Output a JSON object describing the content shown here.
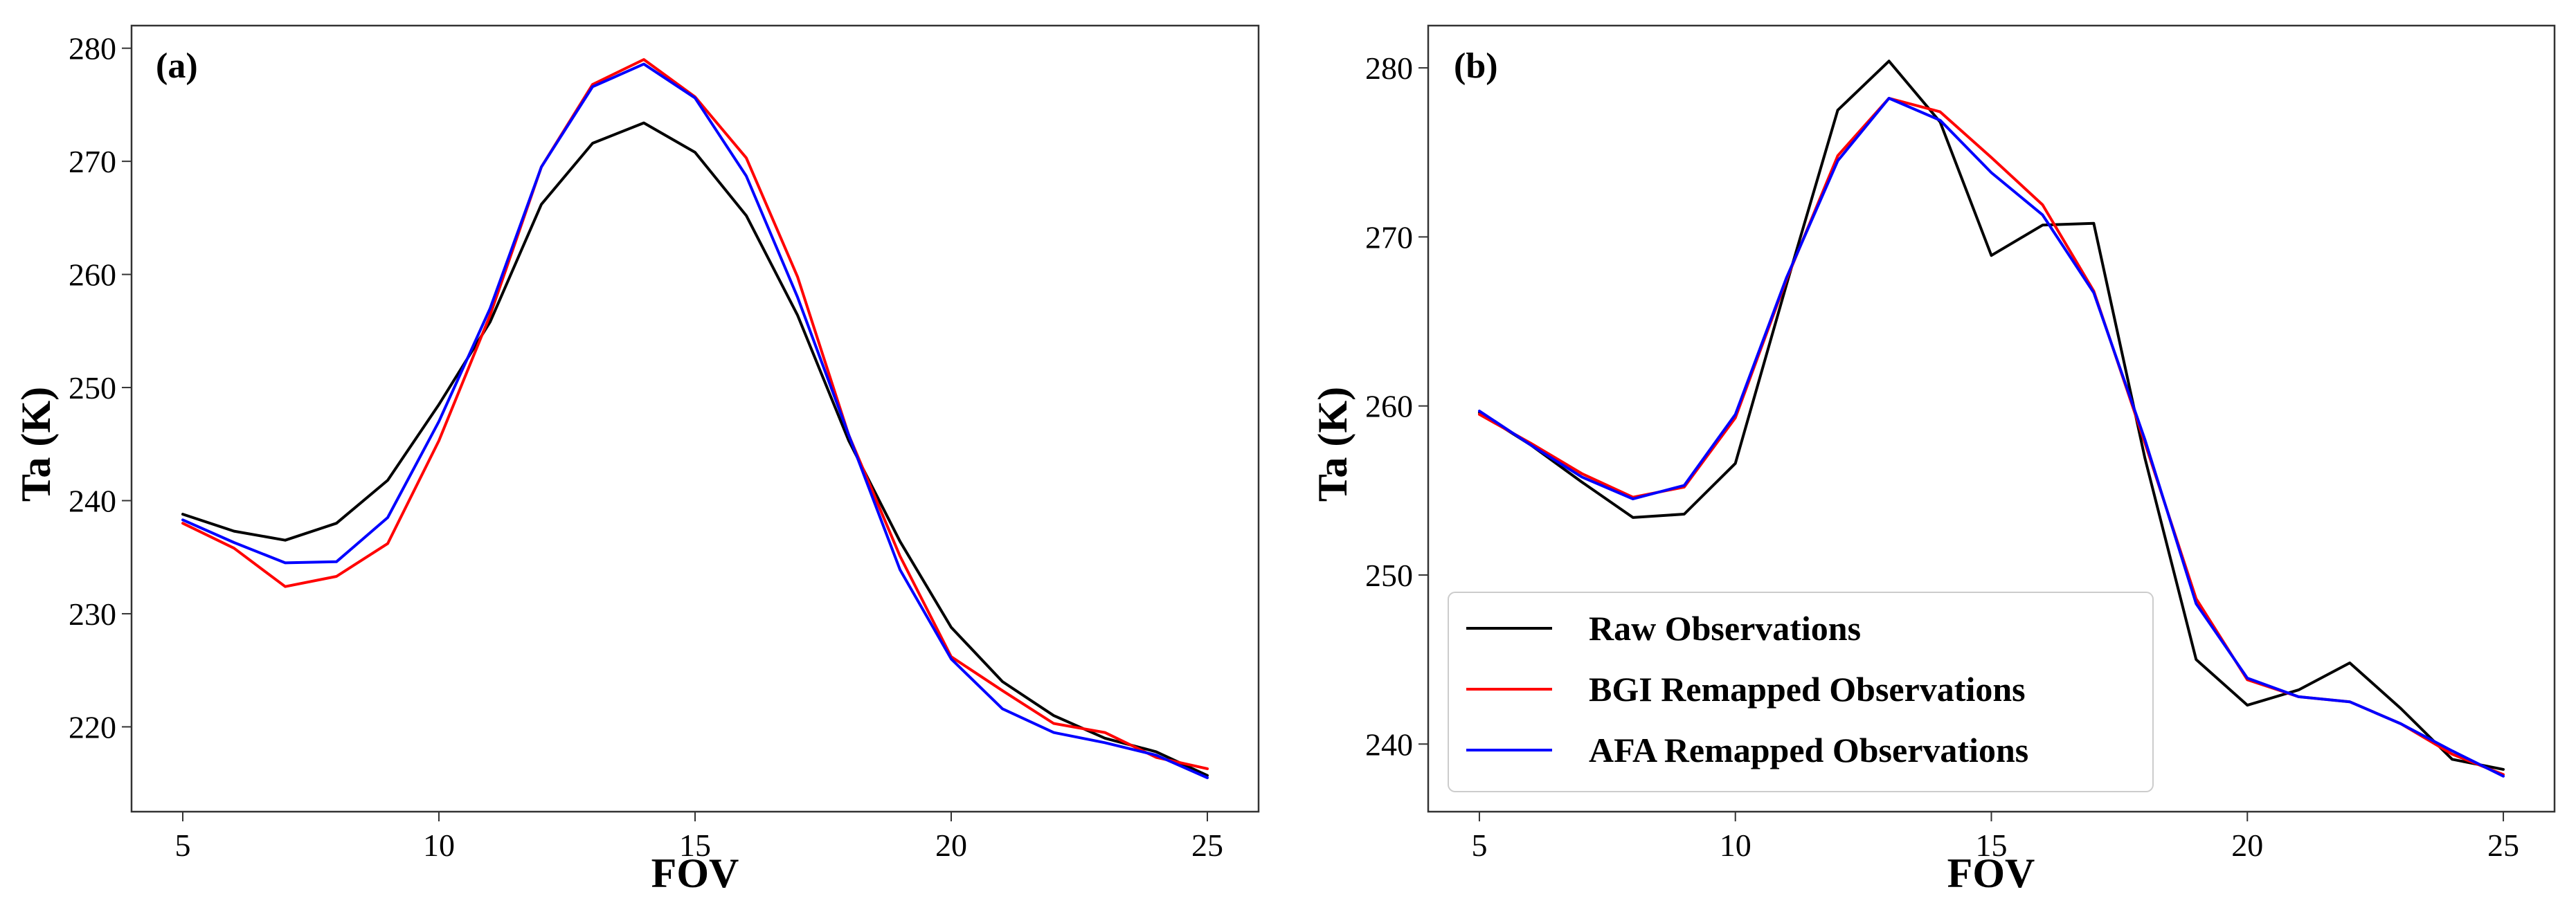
{
  "colors": {
    "raw": "#000000",
    "bgi": "#ff0000",
    "afa": "#0000ff",
    "frame": "#333333"
  },
  "chart_data": [
    {
      "type": "line",
      "panel_label": "(a)",
      "xlabel": "FOV",
      "ylabel": "Ta (K)",
      "xlim": [
        4,
        26
      ],
      "ylim": [
        212.5,
        282
      ],
      "xticks": [
        5,
        10,
        15,
        20,
        25
      ],
      "yticks": [
        220,
        230,
        240,
        250,
        260,
        270,
        280
      ],
      "x": [
        5,
        6,
        7,
        8,
        9,
        10,
        11,
        12,
        13,
        14,
        15,
        16,
        17,
        18,
        19,
        20,
        21,
        22,
        23,
        24,
        25
      ],
      "series": [
        {
          "name": "Raw Observations",
          "color": "#000000",
          "values": [
            238.8,
            237.3,
            236.5,
            238.0,
            241.8,
            248.5,
            255.8,
            266.2,
            271.6,
            273.4,
            270.8,
            265.2,
            256.4,
            245.3,
            236.4,
            228.8,
            224.0,
            221.0,
            219.0,
            217.8,
            215.7
          ]
        },
        {
          "name": "BGI Remapped Observations",
          "color": "#ff0000",
          "values": [
            238.0,
            235.8,
            232.4,
            233.3,
            236.2,
            245.3,
            256.4,
            269.5,
            276.8,
            279.0,
            275.7,
            270.3,
            259.8,
            245.8,
            235.1,
            226.2,
            223.2,
            220.3,
            219.5,
            217.3,
            216.3
          ]
        },
        {
          "name": "AFA Remapped Observations",
          "color": "#0000ff",
          "values": [
            238.3,
            236.3,
            234.5,
            234.6,
            238.5,
            247.0,
            257.0,
            269.5,
            276.6,
            278.6,
            275.6,
            268.7,
            258.0,
            245.8,
            233.9,
            226.0,
            221.6,
            219.5,
            218.6,
            217.5,
            215.5
          ]
        }
      ]
    },
    {
      "type": "line",
      "panel_label": "(b)",
      "xlabel": "FOV",
      "ylabel": "Ta (K)",
      "xlim": [
        4,
        26
      ],
      "ylim": [
        236,
        282.5
      ],
      "xticks": [
        5,
        10,
        15,
        20,
        25
      ],
      "yticks": [
        240,
        250,
        260,
        270,
        280
      ],
      "legend_position": "lower-left",
      "x": [
        5,
        6,
        7,
        8,
        9,
        10,
        11,
        12,
        13,
        14,
        15,
        16,
        17,
        18,
        19,
        20,
        21,
        22,
        23,
        24,
        25
      ],
      "series": [
        {
          "name": "Raw Observations",
          "color": "#000000",
          "values": [
            259.6,
            257.7,
            255.5,
            253.4,
            253.6,
            256.6,
            267.2,
            277.5,
            280.4,
            276.8,
            268.9,
            270.7,
            270.8,
            256.9,
            245.0,
            242.3,
            243.2,
            244.8,
            242.1,
            239.1,
            238.5
          ]
        },
        {
          "name": "BGI Remapped Observations",
          "color": "#ff0000",
          "values": [
            259.5,
            257.8,
            256.0,
            254.6,
            255.2,
            259.3,
            267.5,
            274.8,
            278.2,
            277.4,
            274.7,
            271.9,
            266.8,
            257.8,
            248.6,
            243.8,
            242.8,
            242.5,
            241.2,
            239.4,
            238.2
          ]
        },
        {
          "name": "AFA Remapped Observations",
          "color": "#0000ff",
          "values": [
            259.7,
            257.7,
            255.8,
            254.5,
            255.3,
            259.5,
            267.6,
            274.5,
            278.2,
            276.9,
            273.8,
            271.3,
            266.7,
            258.0,
            248.3,
            243.9,
            242.8,
            242.5,
            241.2,
            239.6,
            238.1
          ]
        }
      ]
    }
  ]
}
